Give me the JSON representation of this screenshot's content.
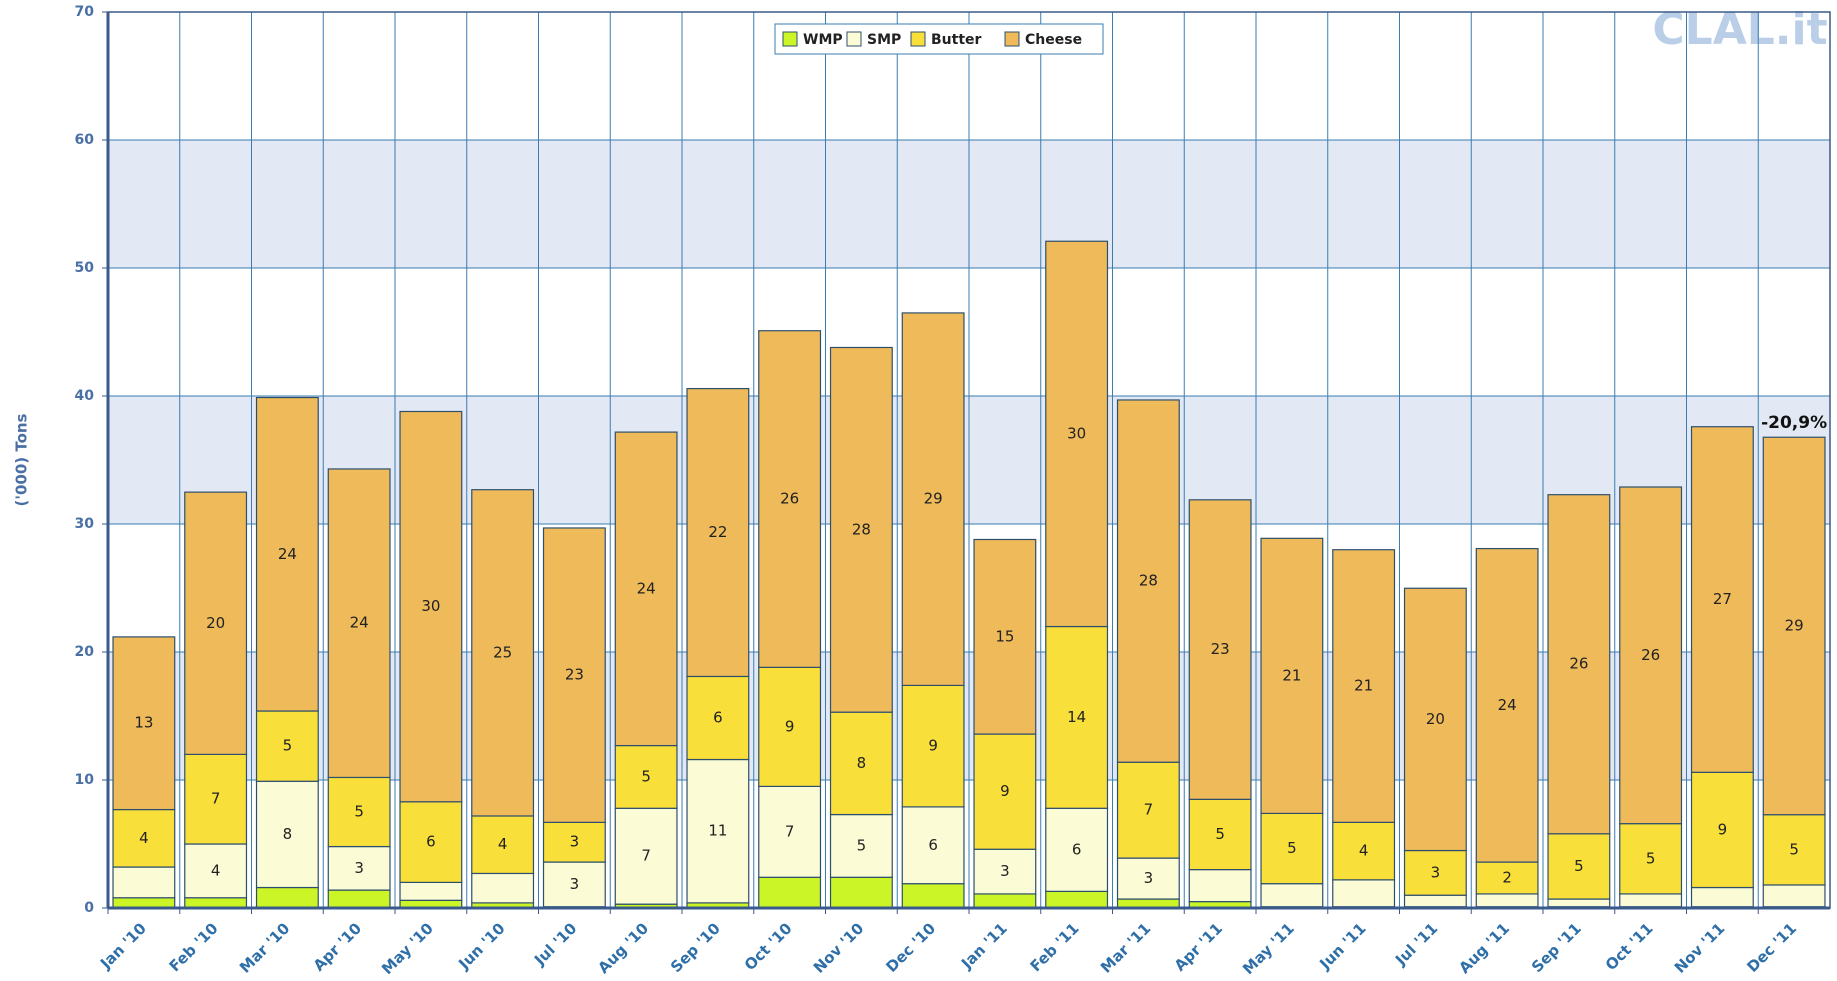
{
  "chart_data": {
    "type": "stacked_bar",
    "watermark": "CLAL.it",
    "ylabel": "('000) Tons",
    "annotations": [
      "-20,9%"
    ],
    "categories": [
      "Jan '10",
      "Feb '10",
      "Mar '10",
      "Apr '10",
      "May '10",
      "Jun '10",
      "Jul '10",
      "Aug '10",
      "Sep '10",
      "Oct '10",
      "Nov '10",
      "Dec '10",
      "Jan '11",
      "Feb '11",
      "Mar '11",
      "Apr '11",
      "May '11",
      "Jun '11",
      "Jul '11",
      "Aug '11",
      "Sep '11",
      "Oct '11",
      "Nov '11",
      "Dec '11"
    ],
    "series": [
      {
        "name": "WMP",
        "color": "#ccf527",
        "values": [
          0.8,
          0.8,
          1.6,
          1.4,
          0.6,
          0.4,
          0.1,
          0.3,
          0.4,
          2.4,
          2.4,
          1.9,
          1.1,
          1.3,
          0.7,
          0.5,
          0.1,
          0.1,
          0.1,
          0.1,
          0.1,
          0.1,
          0.1,
          0.1
        ],
        "value_labels": [
          null,
          null,
          null,
          null,
          null,
          null,
          null,
          null,
          null,
          null,
          null,
          null,
          null,
          null,
          null,
          null,
          null,
          null,
          null,
          null,
          null,
          null,
          null,
          null
        ]
      },
      {
        "name": "SMP",
        "color": "#fbfbd6",
        "values": [
          2.4,
          4.2,
          8.3,
          3.4,
          1.4,
          2.3,
          3.49,
          7.49,
          11.2,
          7.1,
          4.9,
          6.0,
          3.49,
          6.49,
          3.2,
          2.5,
          1.8,
          2.1,
          0.9,
          1.0,
          0.6,
          1.0,
          1.5,
          1.7
        ],
        "value_labels": [
          null,
          "4",
          "8",
          "3",
          null,
          null,
          "3",
          "7",
          "11",
          "7",
          "5",
          "6",
          "3",
          "6",
          "3",
          null,
          null,
          null,
          null,
          null,
          null,
          null,
          null,
          null
        ]
      },
      {
        "name": "Butter",
        "color": "#f9df3a",
        "values": [
          4.49,
          7.0,
          5.49,
          5.4,
          6.3,
          4.49,
          3.1,
          4.9,
          6.49,
          9.3,
          8.0,
          9.49,
          9.0,
          14.2,
          7.49,
          5.49,
          5.49,
          4.49,
          3.49,
          2.49,
          5.1,
          5.49,
          9.0,
          5.49
        ],
        "value_labels": [
          "4",
          "7",
          "5",
          "5",
          "6",
          "4",
          "3",
          "5",
          "6",
          "9",
          "8",
          "9",
          "9",
          "14",
          "7",
          "5",
          "5",
          "4",
          "3",
          "2",
          "5",
          "5",
          "9",
          "5"
        ]
      },
      {
        "name": "Cheese",
        "color": "#efbb5a",
        "values": [
          13.49,
          20.49,
          24.49,
          24.1,
          30.49,
          25.49,
          23.0,
          24.49,
          22.49,
          26.3,
          28.49,
          29.1,
          15.2,
          30.1,
          28.3,
          23.4,
          21.49,
          21.3,
          20.49,
          24.49,
          26.49,
          26.3,
          27.0,
          29.49
        ],
        "value_labels": [
          "13",
          "20",
          "24",
          "24",
          "30",
          "25",
          "23",
          "24",
          "22",
          "26",
          "28",
          "29",
          "15",
          "30",
          "28",
          "23",
          "21",
          "21",
          "20",
          "24",
          "26",
          "26",
          "27",
          "29"
        ]
      }
    ],
    "ylim": [
      0,
      70
    ],
    "yticks": [
      0,
      10,
      20,
      30,
      40,
      50,
      60,
      70
    ],
    "grid": true,
    "legend": "top"
  }
}
